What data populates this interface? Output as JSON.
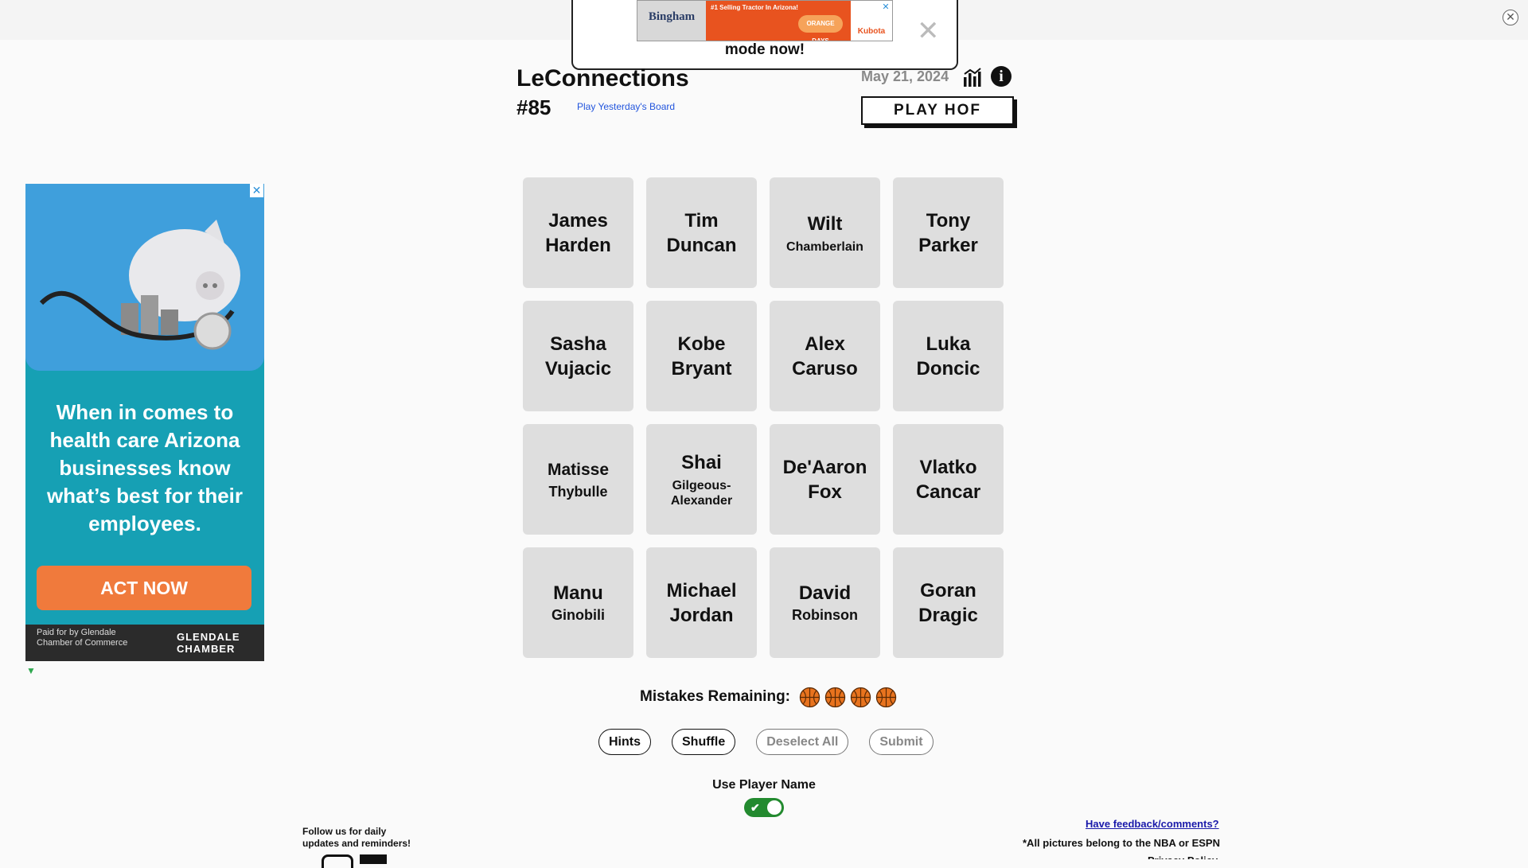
{
  "banner": {
    "text": "mode now!",
    "close_glyph": "✕"
  },
  "top_ad": {
    "brand": "Bingham",
    "headline": "#1 Selling Tractor In Arizona!",
    "badge": "ORANGE DAYS",
    "logo": "Kubota",
    "close_glyph": "✕"
  },
  "side_ad": {
    "headline": "When in comes to health care Arizona businesses know what’s best for their employees.",
    "cta": "ACT NOW",
    "paid_by": "Paid for by Glendale Chamber of Commerce",
    "logo": "GLENDALE CHAMBER",
    "close_glyph": "✕"
  },
  "header": {
    "title": "LeConnections",
    "puzzle_number": "#85",
    "yesterday_link": "Play Yesterday's Board",
    "date": "May 21, 2024",
    "hof_button": "PLAY HOF",
    "icons": [
      "stats-icon",
      "info-icon"
    ]
  },
  "tiles": [
    {
      "first": "James",
      "last": "Harden"
    },
    {
      "first": "Tim",
      "last": "Duncan"
    },
    {
      "first": "Wilt",
      "last": "Chamberlain"
    },
    {
      "first": "Tony",
      "last": "Parker"
    },
    {
      "first": "Sasha",
      "last": "Vujacic"
    },
    {
      "first": "Kobe",
      "last": "Bryant"
    },
    {
      "first": "Alex",
      "last": "Caruso"
    },
    {
      "first": "Luka",
      "last": "Doncic"
    },
    {
      "first": "Matisse",
      "last": "Thybulle"
    },
    {
      "first": "Shai",
      "last": "Gilgeous-Alexander"
    },
    {
      "first": "De'Aaron",
      "last": "Fox"
    },
    {
      "first": "Vlatko",
      "last": "Cancar"
    },
    {
      "first": "Manu",
      "last": "Ginobili"
    },
    {
      "first": "Michael",
      "last": "Jordan"
    },
    {
      "first": "David",
      "last": "Robinson"
    },
    {
      "first": "Goran",
      "last": "Dragic"
    }
  ],
  "mistakes": {
    "label": "Mistakes Remaining:",
    "remaining": 4,
    "icon": "basketball-icon"
  },
  "controls": {
    "hints": "Hints",
    "shuffle": "Shuffle",
    "deselect_all": "Deselect All",
    "submit": "Submit"
  },
  "player_name_toggle": {
    "label": "Use Player Name",
    "enabled": true
  },
  "footer": {
    "follow": "Follow us for daily updates and reminders!",
    "feedback": "Have feedback/comments?",
    "credits": "*All pictures belong to the NBA or ESPN",
    "privacy": "Privacy Policy"
  },
  "colors": {
    "tile_bg": "#dedede",
    "toggle_on": "#238a2f",
    "link": "#2255dd",
    "ad_cta": "#f07a3c",
    "ad_bg": "#16a0b4"
  }
}
